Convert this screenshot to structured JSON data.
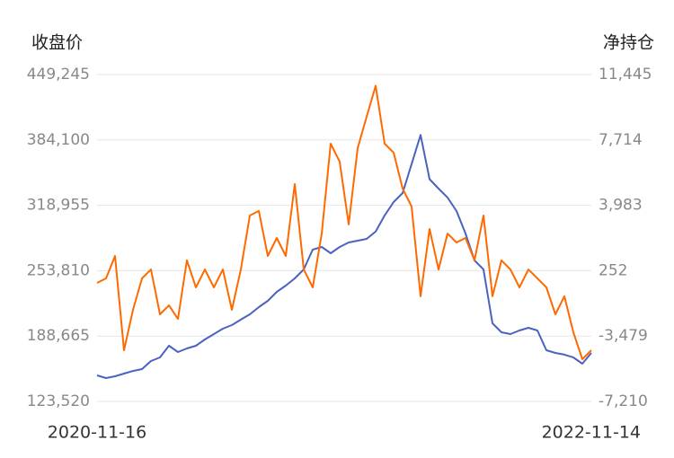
{
  "chart_data": {
    "type": "line",
    "y_label": "收盘价",
    "y2_label": "净持仓",
    "categories": [
      "2020-11-16",
      null,
      null,
      null,
      null,
      null,
      null,
      null,
      null,
      null,
      null,
      null,
      null,
      null,
      null,
      null,
      null,
      null,
      null,
      null,
      null,
      null,
      null,
      null,
      null,
      null,
      null,
      null,
      null,
      null,
      null,
      null,
      null,
      null,
      null,
      null,
      null,
      null,
      null,
      null,
      null,
      null,
      null,
      null,
      null,
      null,
      null,
      null,
      null,
      null,
      null,
      null,
      null,
      null,
      null,
      "2022-11-14"
    ],
    "series": [
      {
        "name": "收盘价",
        "color": "#4a62c0",
        "axis": "y",
        "values": [
          149500,
          146800,
          148600,
          151300,
          153900,
          155700,
          163800,
          167400,
          179000,
          172700,
          176300,
          179000,
          185300,
          190600,
          196000,
          199600,
          205000,
          210300,
          217500,
          223700,
          232700,
          239000,
          246100,
          255100,
          274800,
          277400,
          271200,
          277400,
          281900,
          283700,
          285500,
          292700,
          308800,
          322200,
          331100,
          360000,
          389000,
          345000,
          335600,
          326700,
          313200,
          290900,
          264000,
          255100,
          201400,
          192400,
          190600,
          194200,
          196900,
          194200,
          174500,
          171800,
          170100,
          167400,
          161100,
          171800
        ]
      },
      {
        "name": "净持仓",
        "color": "#ff6a00",
        "axis": "y2",
        "values": [
          -445,
          -190,
          1090,
          -4290,
          -1980,
          -190,
          320,
          -2240,
          -1730,
          -2500,
          840,
          -700,
          320,
          -700,
          320,
          -1980,
          320,
          3400,
          3660,
          1090,
          2120,
          1090,
          5190,
          320,
          -700,
          2370,
          7500,
          6470,
          2890,
          7240,
          9040,
          10800,
          7500,
          6990,
          4940,
          3910,
          -1210,
          2630,
          320,
          2370,
          1860,
          2120,
          840,
          3400,
          -1210,
          840,
          320,
          -700,
          320,
          -190,
          -700,
          -2240,
          -1210,
          -3260,
          -4800,
          -4290
        ]
      }
    ],
    "ylim": [
      123520,
      449245
    ],
    "yticks": [
      {
        "value": 123520,
        "label": "123,520"
      },
      {
        "value": 188665,
        "label": "188,665"
      },
      {
        "value": 253810,
        "label": "253,810"
      },
      {
        "value": 318955,
        "label": "318,955"
      },
      {
        "value": 384100,
        "label": "384,100"
      },
      {
        "value": 449245,
        "label": "449,245"
      }
    ],
    "y2lim": [
      -7210,
      11445
    ],
    "y2ticks": [
      {
        "value": -7210,
        "label": "-7,210"
      },
      {
        "value": -3479,
        "label": "-3,479"
      },
      252,
      {
        "value": 3983,
        "label": "3,983"
      },
      {
        "value": 7714,
        "label": "7,714"
      },
      {
        "value": 11445,
        "label": "11,445"
      }
    ],
    "grid": true
  }
}
